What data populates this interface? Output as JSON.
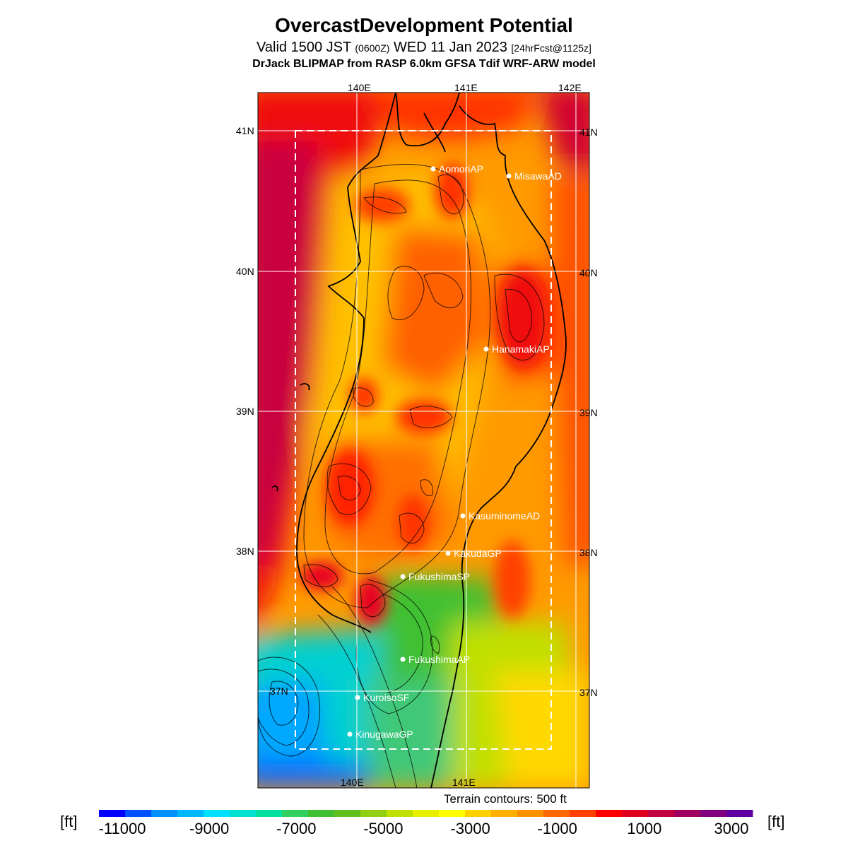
{
  "title": "OvercastDevelopment Potential",
  "subtitle": {
    "valid_prefix": "Valid 1500 JST",
    "utc": "(0600Z)",
    "date": "WED 11 Jan 2023",
    "forecast": "[24hrFcst@1125z]"
  },
  "model_line": "DrJack BLIPMAP from RASP 6.0km GFSA Tdif WRF-ARW model",
  "terrain_note": "Terrain contours: 500 ft",
  "colorbar": {
    "unit_label": "[ft]",
    "tick_labels": [
      "-11000",
      "-9000",
      "-7000",
      "-5000",
      "-3000",
      "-1000",
      "1000",
      "3000"
    ],
    "colors": [
      "#0000ff",
      "#0050ff",
      "#0090ff",
      "#00b8ff",
      "#00e0ff",
      "#00e0d0",
      "#00e0a0",
      "#30d060",
      "#40c030",
      "#60c020",
      "#90d010",
      "#c0e000",
      "#e8f000",
      "#ffff00",
      "#ffd000",
      "#ffb000",
      "#ff9000",
      "#ff6800",
      "#ff4000",
      "#ff0000",
      "#e00020",
      "#c00040",
      "#a00060",
      "#800080",
      "#6000a0"
    ]
  },
  "map": {
    "lon_labels_top": [
      "140E",
      "141E",
      "142E"
    ],
    "lon_labels_bottom": [
      "140E",
      "141E"
    ],
    "lat_labels_left": [
      "41N",
      "40N",
      "39N",
      "38N",
      "37N"
    ],
    "lat_labels_right": [
      "41N",
      "40N",
      "39N",
      "38N",
      "37N"
    ],
    "stations": [
      {
        "name": "AomoriAP"
      },
      {
        "name": "MisawaAD"
      },
      {
        "name": "HanamakiAP"
      },
      {
        "name": "KasuminomeAD"
      },
      {
        "name": "KakudaGP"
      },
      {
        "name": "FukushimaSP"
      },
      {
        "name": "FukushimaAP"
      },
      {
        "name": "KuroisoSF"
      },
      {
        "name": "KinugawaGP"
      }
    ]
  }
}
